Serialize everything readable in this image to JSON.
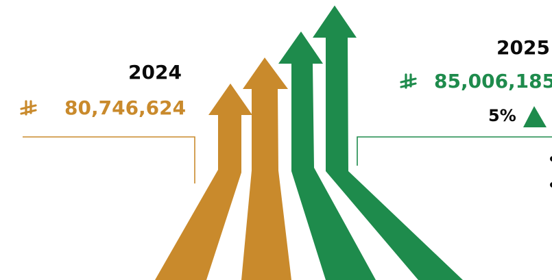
{
  "colors": {
    "gold": "#c98a2c",
    "green": "#1e8b4c",
    "text": "#0a0a0a"
  },
  "left": {
    "year": "2024",
    "value": "80,746,624",
    "currency_icon": "riyal-icon"
  },
  "right": {
    "year": "2025",
    "value": "85,006,185",
    "currency_icon": "riyal-icon",
    "change": "5%",
    "trend_icon": "up-triangle-icon"
  }
}
